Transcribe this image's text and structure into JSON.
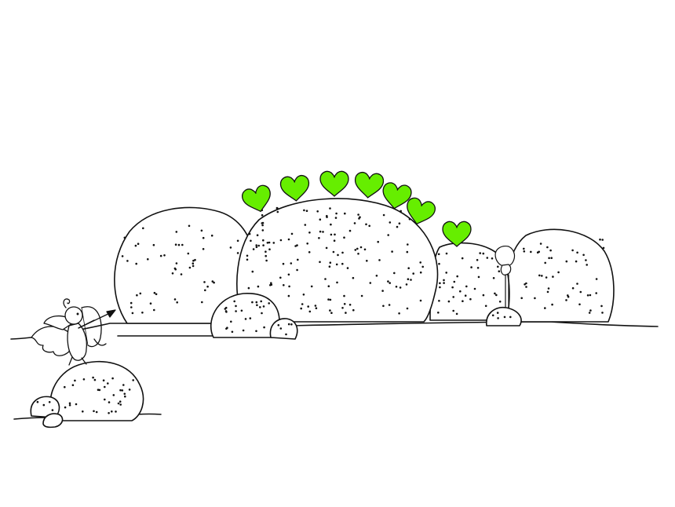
{
  "scene": {
    "background": "#ffffff",
    "ink_color": "#111111",
    "heart_color": "#66ee00",
    "heart_count": 7,
    "characters": [
      "cupid-with-bow",
      "peeking-figure"
    ]
  }
}
